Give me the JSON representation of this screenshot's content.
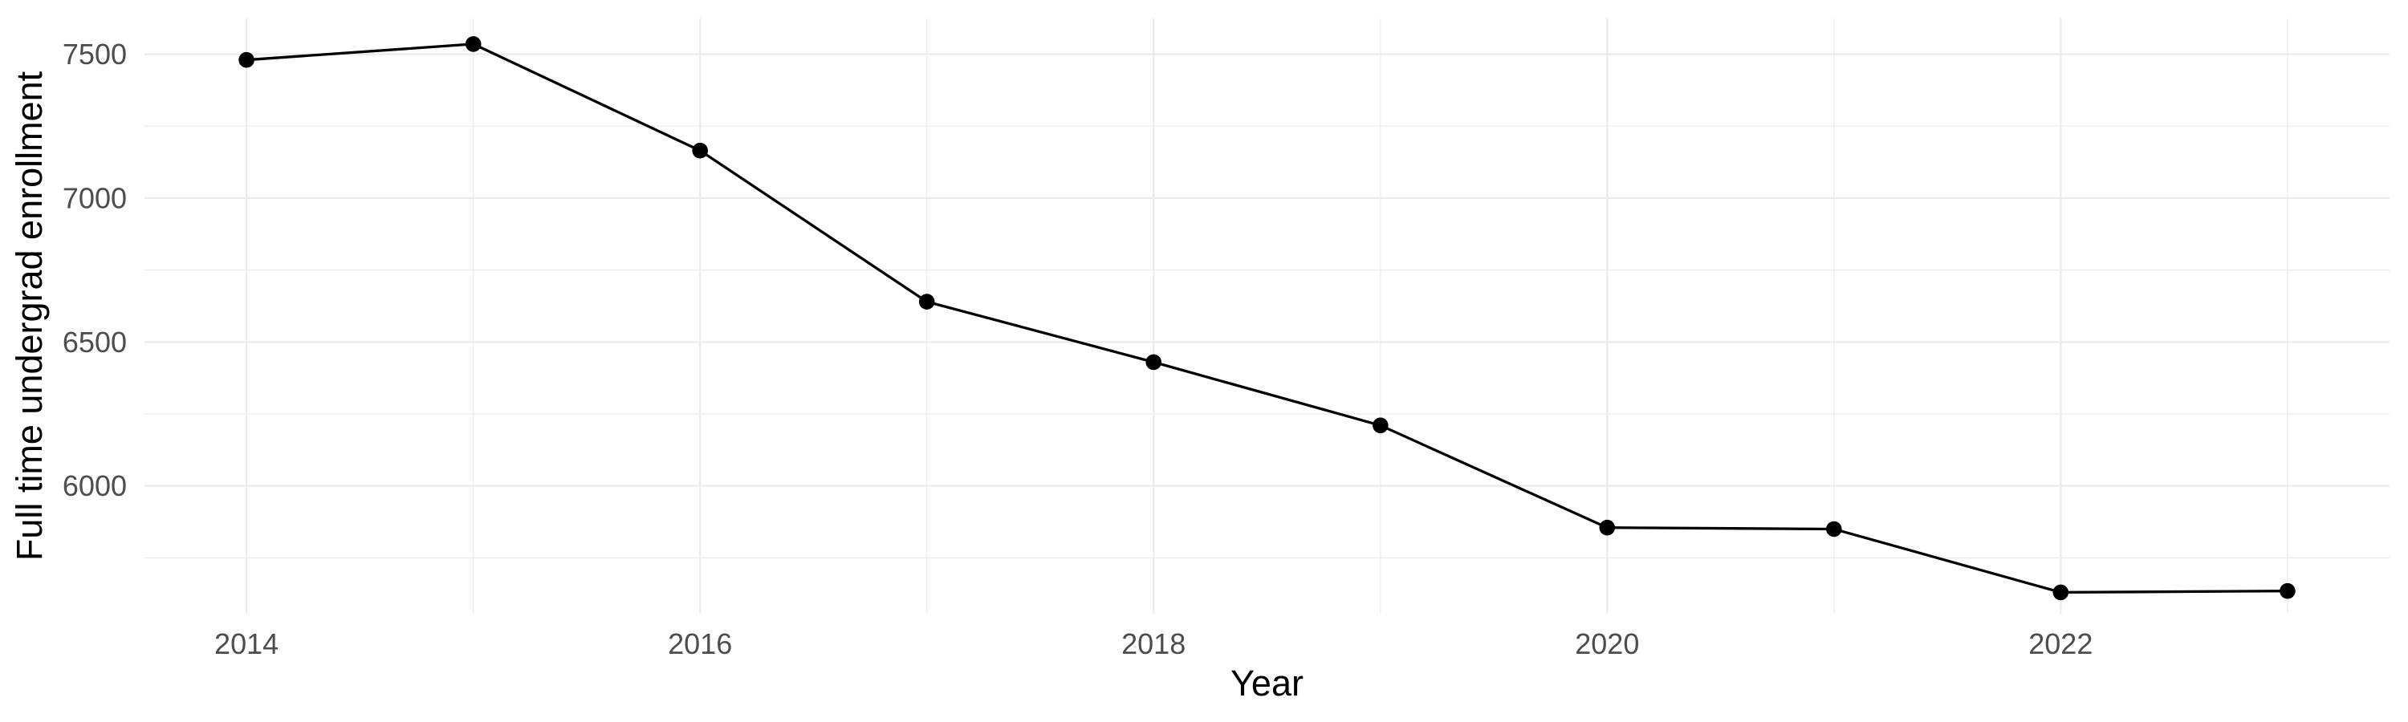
{
  "page": {
    "background": "#FFFFFF"
  },
  "chart_data": {
    "type": "line",
    "title": "",
    "xlabel": "Year",
    "ylabel": "Full time undergrad enrollment",
    "x": [
      2014,
      2015,
      2016,
      2017,
      2018,
      2019,
      2020,
      2021,
      2022,
      2023
    ],
    "series": [
      {
        "name": "Full time undergrad enrollment",
        "values": [
          7480,
          7535,
          7165,
          6640,
          6430,
          6210,
          5855,
          5850,
          5630,
          5635
        ]
      }
    ],
    "x_major_ticks": [
      2014,
      2016,
      2018,
      2020,
      2022
    ],
    "x_minor_gridlines": [
      2015,
      2017,
      2019,
      2021,
      2023
    ],
    "y_major_ticks": [
      6000,
      6500,
      7000,
      7500
    ],
    "y_minor_gridlines": [
      5750,
      6250,
      6750,
      7250
    ],
    "xlim": [
      2013.55,
      2023.45
    ],
    "ylim": [
      5556,
      7624
    ],
    "grid": "major-and-minor",
    "legend": "none",
    "marker": "filled-circle",
    "colors": {
      "line": "#000000",
      "point": "#000000",
      "grid": "#EBEBEB",
      "tick_label": "#4D4D4D",
      "axis_title": "#000000",
      "background": "#FFFFFF"
    }
  }
}
